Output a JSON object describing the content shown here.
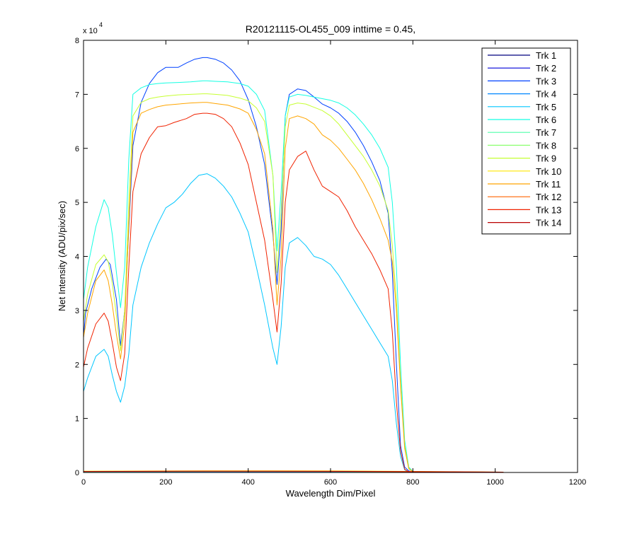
{
  "chart_data": {
    "type": "line",
    "title": "R20121115-OL455_009 inttime = 0.45,",
    "xlabel": "Wavelength Dim/Pixel",
    "ylabel": "Net Intensity (ADU/pix/sec)",
    "xlim": [
      0,
      1200
    ],
    "ylim": [
      0,
      80000
    ],
    "xticks": [
      "0",
      "200",
      "400",
      "600",
      "800",
      "1000",
      "1200"
    ],
    "yticks": [
      "0",
      "1",
      "2",
      "3",
      "4",
      "5",
      "6",
      "7",
      "8"
    ],
    "y_exponent": {
      "base": "x 10",
      "power": "4"
    },
    "grid": false,
    "legend_position": "top-right",
    "series": [
      {
        "name": "Trk 1",
        "color": "#00007f",
        "x": [
          0,
          300,
          600,
          900,
          1020
        ],
        "y": [
          150,
          180,
          170,
          100,
          50
        ]
      },
      {
        "name": "Trk 2",
        "color": "#0000d9",
        "x": [
          0,
          300,
          600,
          900,
          1020
        ],
        "y": [
          200,
          250,
          230,
          120,
          60
        ]
      },
      {
        "name": "Trk 3",
        "color": "#0041ff",
        "x": [
          0,
          5,
          20,
          40,
          55,
          65,
          80,
          90,
          100,
          110,
          120,
          140,
          160,
          180,
          200,
          230,
          250,
          270,
          290,
          300,
          320,
          340,
          360,
          380,
          400,
          420,
          440,
          460,
          470,
          480,
          490,
          500,
          520,
          540,
          560,
          580,
          600,
          620,
          640,
          660,
          680,
          700,
          720,
          740,
          750,
          760,
          770,
          780,
          790,
          800,
          820
        ],
        "y": [
          25000,
          29500,
          34000,
          38000,
          39500,
          38500,
          32000,
          23500,
          30000,
          45000,
          60500,
          68500,
          72000,
          74000,
          75000,
          75000,
          75800,
          76500,
          76800,
          76800,
          76500,
          75800,
          74500,
          72500,
          69000,
          64000,
          57000,
          44000,
          34800,
          45000,
          66000,
          70000,
          71000,
          70700,
          69500,
          68200,
          67500,
          66500,
          65000,
          63000,
          60500,
          57500,
          54000,
          48000,
          37000,
          20000,
          5000,
          1000,
          300,
          100,
          50
        ]
      },
      {
        "name": "Trk 4",
        "color": "#0086ff",
        "x": [
          0,
          300,
          600,
          900,
          1020
        ],
        "y": [
          120,
          150,
          140,
          90,
          40
        ]
      },
      {
        "name": "Trk 5",
        "color": "#00c6ff",
        "x": [
          0,
          10,
          30,
          50,
          60,
          70,
          80,
          90,
          100,
          110,
          120,
          140,
          160,
          180,
          200,
          220,
          240,
          260,
          280,
          300,
          320,
          340,
          360,
          380,
          400,
          420,
          440,
          460,
          470,
          480,
          490,
          500,
          520,
          540,
          560,
          580,
          600,
          620,
          640,
          660,
          680,
          700,
          720,
          740,
          750,
          760,
          770,
          780,
          790,
          800,
          820
        ],
        "y": [
          15000,
          17500,
          21500,
          22800,
          21500,
          18000,
          15000,
          13000,
          16000,
          22000,
          31000,
          38000,
          42500,
          46000,
          49000,
          50000,
          51500,
          53500,
          55000,
          55300,
          54500,
          53000,
          51000,
          48000,
          44500,
          38000,
          31000,
          23000,
          20000,
          27000,
          38000,
          42500,
          43500,
          42000,
          40000,
          39500,
          38500,
          36500,
          34000,
          31500,
          29000,
          26500,
          24000,
          21500,
          17000,
          9000,
          3000,
          500,
          100,
          50,
          20
        ]
      },
      {
        "name": "Trk 6",
        "color": "#14ffe3",
        "x": [
          0,
          10,
          30,
          50,
          60,
          70,
          80,
          90,
          100,
          110,
          120,
          140,
          160,
          180,
          200,
          230,
          260,
          290,
          300,
          320,
          350,
          380,
          400,
          420,
          440,
          460,
          470,
          480,
          490,
          500,
          520,
          540,
          560,
          580,
          600,
          620,
          640,
          660,
          680,
          700,
          720,
          740,
          750,
          760,
          770,
          780,
          790,
          800,
          820
        ],
        "y": [
          32000,
          38000,
          45500,
          50500,
          49000,
          44000,
          37000,
          30500,
          38000,
          58000,
          70000,
          71200,
          71800,
          72000,
          72100,
          72200,
          72300,
          72500,
          72500,
          72400,
          72300,
          72000,
          71500,
          70000,
          67000,
          55000,
          41000,
          52000,
          66000,
          69500,
          70000,
          69800,
          69500,
          69200,
          68900,
          68400,
          67500,
          66200,
          64500,
          62500,
          60000,
          56500,
          50000,
          38000,
          20000,
          6000,
          1000,
          200,
          50
        ]
      },
      {
        "name": "Trk 7",
        "color": "#4fffaa",
        "x": [
          0,
          300,
          600,
          900,
          1020
        ],
        "y": [
          180,
          220,
          200,
          110,
          50
        ]
      },
      {
        "name": "Trk 8",
        "color": "#8aff6f",
        "x": [
          0,
          300,
          600,
          900,
          1020
        ],
        "y": [
          160,
          200,
          180,
          100,
          50
        ]
      },
      {
        "name": "Trk 9",
        "color": "#c6ff32",
        "x": [
          0,
          10,
          30,
          50,
          60,
          70,
          80,
          90,
          100,
          110,
          120,
          140,
          160,
          180,
          200,
          230,
          260,
          290,
          300,
          320,
          350,
          380,
          400,
          420,
          440,
          460,
          470,
          480,
          490,
          500,
          520,
          540,
          560,
          580,
          600,
          620,
          640,
          660,
          680,
          700,
          720,
          740,
          750,
          760,
          770,
          780,
          790,
          800,
          820
        ],
        "y": [
          28000,
          33000,
          38500,
          40300,
          39000,
          35000,
          29000,
          22500,
          30000,
          50000,
          66000,
          68500,
          69200,
          69500,
          69700,
          69900,
          70000,
          70100,
          70100,
          70000,
          69800,
          69300,
          68800,
          67500,
          65000,
          55000,
          37000,
          48000,
          64000,
          68000,
          68400,
          68200,
          67600,
          67000,
          66000,
          64500,
          62500,
          60500,
          58500,
          56000,
          53000,
          48500,
          42000,
          32000,
          17000,
          5000,
          800,
          150,
          50
        ]
      },
      {
        "name": "Trk 10",
        "color": "#ffe600",
        "x": [
          0,
          300,
          600,
          900,
          1020
        ],
        "y": [
          250,
          320,
          300,
          150,
          60
        ]
      },
      {
        "name": "Trk 11",
        "color": "#ffa500",
        "x": [
          0,
          10,
          30,
          50,
          60,
          70,
          80,
          90,
          100,
          110,
          120,
          140,
          160,
          180,
          200,
          230,
          260,
          290,
          300,
          320,
          350,
          380,
          400,
          420,
          440,
          460,
          470,
          480,
          490,
          500,
          520,
          540,
          560,
          580,
          600,
          620,
          640,
          660,
          680,
          700,
          720,
          740,
          750,
          760,
          770,
          780,
          790,
          800,
          820
        ],
        "y": [
          25000,
          29500,
          35500,
          37500,
          35500,
          31000,
          25500,
          21000,
          27500,
          46000,
          63000,
          66500,
          67200,
          67700,
          68000,
          68200,
          68400,
          68500,
          68500,
          68300,
          68000,
          67300,
          66500,
          63500,
          59000,
          45000,
          31000,
          40000,
          60000,
          65500,
          66000,
          65500,
          64500,
          62500,
          61500,
          60000,
          58000,
          56000,
          53500,
          50500,
          47000,
          43000,
          39000,
          30000,
          16000,
          4500,
          700,
          150,
          50
        ]
      },
      {
        "name": "Trk 12",
        "color": "#ff6400",
        "x": [
          0,
          300,
          600,
          900,
          1020
        ],
        "y": [
          200,
          260,
          240,
          130,
          60
        ]
      },
      {
        "name": "Trk 13",
        "color": "#f02200",
        "x": [
          0,
          10,
          30,
          50,
          60,
          70,
          80,
          90,
          100,
          110,
          120,
          140,
          160,
          180,
          200,
          220,
          250,
          270,
          290,
          300,
          320,
          340,
          360,
          380,
          400,
          420,
          440,
          460,
          470,
          480,
          490,
          500,
          520,
          540,
          560,
          580,
          600,
          620,
          640,
          660,
          680,
          700,
          720,
          740,
          750,
          760,
          770,
          780,
          790,
          800,
          820
        ],
        "y": [
          19500,
          23000,
          27500,
          29500,
          28000,
          24000,
          19500,
          17000,
          22000,
          38000,
          52000,
          59000,
          62000,
          64000,
          64200,
          64800,
          65500,
          66300,
          66500,
          66500,
          66300,
          65500,
          64000,
          61000,
          57000,
          50000,
          43000,
          32000,
          26000,
          35000,
          50000,
          56000,
          58500,
          59500,
          56000,
          53000,
          52000,
          51000,
          48500,
          45500,
          43000,
          40500,
          37500,
          34000,
          26000,
          13000,
          4000,
          600,
          150,
          50,
          20
        ]
      },
      {
        "name": "Trk 14",
        "color": "#ba0000",
        "x": [
          0,
          300,
          600,
          900,
          1020
        ],
        "y": [
          180,
          230,
          210,
          120,
          50
        ]
      }
    ]
  }
}
